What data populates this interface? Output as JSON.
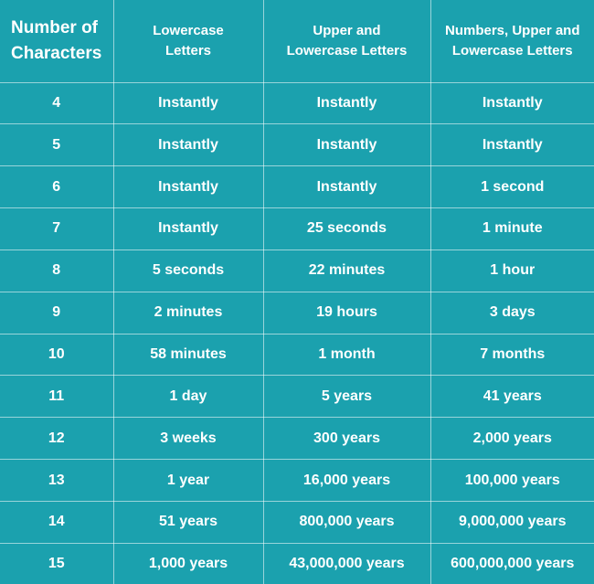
{
  "table": {
    "headers": [
      "Number of Characters",
      "Lowercase Letters",
      "Upper and Lowercase Letters",
      "Numbers, Upper and Lowercase Letters"
    ],
    "rows": [
      [
        "4",
        "Instantly",
        "Instantly",
        "Instantly"
      ],
      [
        "5",
        "Instantly",
        "Instantly",
        "Instantly"
      ],
      [
        "6",
        "Instantly",
        "Instantly",
        "1 second"
      ],
      [
        "7",
        "Instantly",
        "25 seconds",
        "1 minute"
      ],
      [
        "8",
        "5 seconds",
        "22 minutes",
        "1 hour"
      ],
      [
        "9",
        "2 minutes",
        "19 hours",
        "3 days"
      ],
      [
        "10",
        "58 minutes",
        "1 month",
        "7 months"
      ],
      [
        "11",
        "1 day",
        "5 years",
        "41 years"
      ],
      [
        "12",
        "3 weeks",
        "300 years",
        "2,000 years"
      ],
      [
        "13",
        "1 year",
        "16,000 years",
        "100,000 years"
      ],
      [
        "14",
        "51 years",
        "800,000 years",
        "9,000,000 years"
      ],
      [
        "15",
        "1,000 years",
        "43,000,000 years",
        "600,000,000 years"
      ]
    ]
  }
}
